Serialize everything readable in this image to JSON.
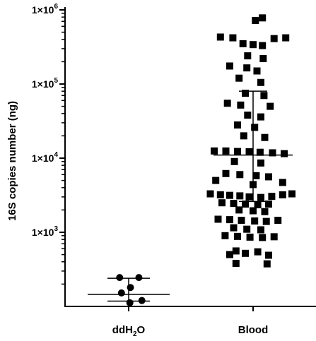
{
  "chart_data": {
    "type": "scatter",
    "subtype": "dot-plot-log-scale",
    "ylabel": "16S copies number (ng)",
    "yscale": "log",
    "ylim": [
      100,
      1000000
    ],
    "yticks": [
      {
        "value": 1000,
        "base": "1×10",
        "exp": "3"
      },
      {
        "value": 10000,
        "base": "1×10",
        "exp": "4"
      },
      {
        "value": 100000,
        "base": "1×10",
        "exp": "5"
      },
      {
        "value": 1000000,
        "base": "1×10",
        "exp": "6"
      }
    ],
    "categories": [
      {
        "label_main": "ddH",
        "label_sub": "2",
        "label_end": "O",
        "marker": "circle",
        "marker_color": "#000000"
      },
      {
        "label_main": "Blood",
        "label_sub": "",
        "label_end": "",
        "marker": "square",
        "marker_color": "#000000"
      }
    ],
    "series": [
      {
        "category_index": 0,
        "median": 145,
        "error_low": 118,
        "error_high": 240,
        "points": [
          {
            "y": 245,
            "jitter": -0.15
          },
          {
            "y": 245,
            "jitter": 0.17
          },
          {
            "y": 180,
            "jitter": 0.03
          },
          {
            "y": 152,
            "jitter": -0.12
          },
          {
            "y": 120,
            "jitter": 0.22
          },
          {
            "y": 112,
            "jitter": 0.02
          }
        ]
      },
      {
        "category_index": 1,
        "median": 11000,
        "error_low": 2600,
        "error_high": 80000,
        "points": [
          {
            "y": 780000,
            "jitter": 0.12
          },
          {
            "y": 720000,
            "jitter": 0.03
          },
          {
            "y": 430000,
            "jitter": -0.42
          },
          {
            "y": 420000,
            "jitter": -0.26
          },
          {
            "y": 420000,
            "jitter": 0.42
          },
          {
            "y": 410000,
            "jitter": 0.27
          },
          {
            "y": 350000,
            "jitter": -0.13
          },
          {
            "y": 340000,
            "jitter": 0.0
          },
          {
            "y": 330000,
            "jitter": 0.12
          },
          {
            "y": 240000,
            "jitter": -0.07
          },
          {
            "y": 220000,
            "jitter": 0.13
          },
          {
            "y": 175000,
            "jitter": -0.3
          },
          {
            "y": 165000,
            "jitter": -0.08
          },
          {
            "y": 150000,
            "jitter": 0.05
          },
          {
            "y": 120000,
            "jitter": -0.18
          },
          {
            "y": 105000,
            "jitter": 0.1
          },
          {
            "y": 75000,
            "jitter": -0.1
          },
          {
            "y": 70000,
            "jitter": 0.14
          },
          {
            "y": 55000,
            "jitter": -0.33
          },
          {
            "y": 52000,
            "jitter": -0.16
          },
          {
            "y": 50000,
            "jitter": 0.22
          },
          {
            "y": 38000,
            "jitter": -0.07
          },
          {
            "y": 36000,
            "jitter": 0.1
          },
          {
            "y": 28000,
            "jitter": -0.2
          },
          {
            "y": 26000,
            "jitter": 0.02
          },
          {
            "y": 20000,
            "jitter": -0.12
          },
          {
            "y": 19000,
            "jitter": 0.15
          },
          {
            "y": 12500,
            "jitter": -0.5
          },
          {
            "y": 12500,
            "jitter": -0.35
          },
          {
            "y": 12300,
            "jitter": -0.2
          },
          {
            "y": 12200,
            "jitter": -0.05
          },
          {
            "y": 12000,
            "jitter": 0.09
          },
          {
            "y": 11800,
            "jitter": 0.25
          },
          {
            "y": 11500,
            "jitter": 0.4
          },
          {
            "y": 9000,
            "jitter": -0.24
          },
          {
            "y": 8600,
            "jitter": 0.1
          },
          {
            "y": 6200,
            "jitter": -0.35
          },
          {
            "y": 6000,
            "jitter": -0.17
          },
          {
            "y": 5800,
            "jitter": 0.04
          },
          {
            "y": 5600,
            "jitter": 0.2
          },
          {
            "y": 5000,
            "jitter": -0.48
          },
          {
            "y": 4700,
            "jitter": 0.38
          },
          {
            "y": 4400,
            "jitter": 0.0
          },
          {
            "y": 3300,
            "jitter": -0.55
          },
          {
            "y": 3200,
            "jitter": -0.42
          },
          {
            "y": 3150,
            "jitter": -0.3
          },
          {
            "y": 3100,
            "jitter": -0.17
          },
          {
            "y": 3000,
            "jitter": -0.05
          },
          {
            "y": 2950,
            "jitter": 0.1
          },
          {
            "y": 3050,
            "jitter": 0.24
          },
          {
            "y": 3200,
            "jitter": 0.38
          },
          {
            "y": 3300,
            "jitter": 0.5
          },
          {
            "y": 2500,
            "jitter": -0.4
          },
          {
            "y": 2450,
            "jitter": -0.25
          },
          {
            "y": 2400,
            "jitter": -0.1
          },
          {
            "y": 2350,
            "jitter": 0.06
          },
          {
            "y": 2400,
            "jitter": 0.2
          },
          {
            "y": 2000,
            "jitter": -0.18
          },
          {
            "y": 1950,
            "jitter": 0.0
          },
          {
            "y": 1900,
            "jitter": 0.15
          },
          {
            "y": 1500,
            "jitter": -0.45
          },
          {
            "y": 1480,
            "jitter": -0.3
          },
          {
            "y": 1450,
            "jitter": -0.15
          },
          {
            "y": 1420,
            "jitter": 0.02
          },
          {
            "y": 1400,
            "jitter": 0.17
          },
          {
            "y": 1450,
            "jitter": 0.32
          },
          {
            "y": 1150,
            "jitter": -0.25
          },
          {
            "y": 1100,
            "jitter": -0.08
          },
          {
            "y": 1080,
            "jitter": 0.1
          },
          {
            "y": 900,
            "jitter": -0.36
          },
          {
            "y": 880,
            "jitter": -0.2
          },
          {
            "y": 860,
            "jitter": -0.04
          },
          {
            "y": 850,
            "jitter": 0.12
          },
          {
            "y": 870,
            "jitter": 0.27
          },
          {
            "y": 560,
            "jitter": -0.22
          },
          {
            "y": 545,
            "jitter": 0.06
          },
          {
            "y": 520,
            "jitter": -0.1
          },
          {
            "y": 500,
            "jitter": -0.3
          },
          {
            "y": 490,
            "jitter": 0.2
          },
          {
            "y": 380,
            "jitter": -0.22
          },
          {
            "y": 375,
            "jitter": 0.18
          }
        ]
      }
    ],
    "grid": false,
    "legend": "none"
  }
}
